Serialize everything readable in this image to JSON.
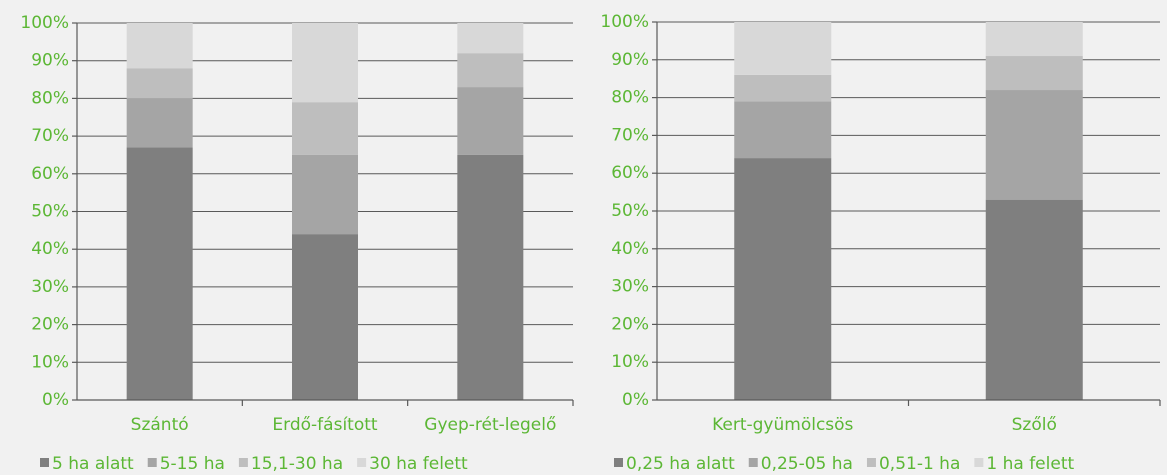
{
  "chart_data": [
    {
      "type": "bar",
      "stacked": true,
      "categories": [
        "Szántó",
        "Erdő-fásított",
        "Gyep-rét-legelő"
      ],
      "series": [
        {
          "name": "5 ha alatt",
          "color": "#7f7f7f",
          "values": [
            67,
            44,
            65
          ]
        },
        {
          "name": "5-15 ha",
          "color": "#a5a5a5",
          "values": [
            13,
            21,
            18
          ]
        },
        {
          "name": "15,1-30 ha",
          "color": "#bebebe",
          "values": [
            8,
            14,
            9
          ]
        },
        {
          "name": "30 ha felett",
          "color": "#d8d8d8",
          "values": [
            12,
            21,
            8
          ]
        }
      ],
      "ylim": [
        0,
        100
      ],
      "yticks": [
        {
          "value": 0,
          "label": "0%"
        },
        {
          "value": 10,
          "label": "10%"
        },
        {
          "value": 20,
          "label": "20%"
        },
        {
          "value": 30,
          "label": "30%"
        },
        {
          "value": 40,
          "label": "40%"
        },
        {
          "value": 50,
          "label": "50%"
        },
        {
          "value": 60,
          "label": "60%"
        },
        {
          "value": 70,
          "label": "70%"
        },
        {
          "value": 80,
          "label": "80%"
        },
        {
          "value": 90,
          "label": "90%"
        },
        {
          "value": 100,
          "label": "100%"
        }
      ],
      "grid": true,
      "legend": "bottom"
    },
    {
      "type": "bar",
      "stacked": true,
      "categories": [
        "Kert-gyümölcsös",
        "Szőlő"
      ],
      "series": [
        {
          "name": "0,25 ha alatt",
          "color": "#7f7f7f",
          "values": [
            64,
            53
          ]
        },
        {
          "name": "0,25-05 ha",
          "color": "#a5a5a5",
          "values": [
            15,
            29
          ]
        },
        {
          "name": "0,51-1 ha",
          "color": "#bebebe",
          "values": [
            7,
            9
          ]
        },
        {
          "name": "1 ha felett",
          "color": "#d8d8d8",
          "values": [
            14,
            9
          ]
        }
      ],
      "ylim": [
        0,
        100
      ],
      "yticks": [
        {
          "value": 0,
          "label": "0%"
        },
        {
          "value": 10,
          "label": "10%"
        },
        {
          "value": 20,
          "label": "20%"
        },
        {
          "value": 30,
          "label": "30%"
        },
        {
          "value": 40,
          "label": "40%"
        },
        {
          "value": 50,
          "label": "50%"
        },
        {
          "value": 60,
          "label": "60%"
        },
        {
          "value": 70,
          "label": "70%"
        },
        {
          "value": 80,
          "label": "80%"
        },
        {
          "value": 90,
          "label": "90%"
        },
        {
          "value": 100,
          "label": "100%"
        }
      ],
      "grid": true,
      "legend": "bottom"
    }
  ]
}
